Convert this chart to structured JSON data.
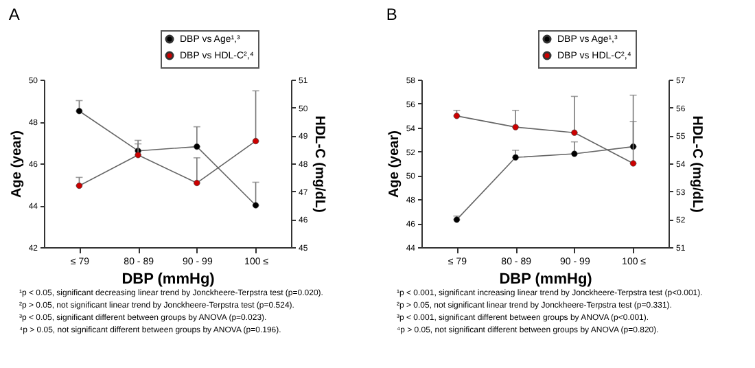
{
  "chart_data": [
    {
      "type": "line",
      "title": "A",
      "xlabel": "DBP (mmHg)",
      "ylabel": "Age (year)",
      "y2label": "HDL-C (mg/dL)",
      "categories": [
        "≤ 79",
        "80 - 89",
        "90 - 99",
        "100 ≤"
      ],
      "series": [
        {
          "name": "DBP vs Age¹,³",
          "color": "#000000",
          "values": [
            48.5,
            46.6,
            46.8,
            44.0
          ],
          "errors": [
            [
              48.5,
              49.0
            ],
            [
              46.6,
              47.1
            ],
            [
              46.8,
              47.75
            ],
            [
              44.0,
              45.1
            ]
          ]
        },
        {
          "name": "DBP vs HDL-C²,⁴",
          "color": "#cc0000",
          "axis": "y2",
          "values": [
            47.2,
            48.3,
            47.3,
            48.8
          ],
          "errors": [
            [
              47.2,
              47.5
            ],
            [
              48.3,
              48.7
            ],
            [
              47.3,
              48.2
            ],
            [
              48.8,
              50.6
            ]
          ]
        }
      ],
      "ylim": [
        42,
        50
      ],
      "yticks": [
        42,
        44,
        46,
        48,
        50
      ],
      "y2lim": [
        45,
        51
      ],
      "y2ticks": [
        45,
        46,
        47,
        48,
        49,
        50,
        51
      ],
      "marker": "circle",
      "legend": "top right",
      "annotations": [
        "¹p < 0.05, significant decreasing linear trend by Jonckheere-Terpstra test (p=0.020).",
        "²p > 0.05, not significant linear trend by Jonckheere-Terpstra test (p=0.524).",
        "³p < 0.05, significant different between groups by ANOVA (p=0.023).",
        "⁴p > 0.05, not significant different between groups by ANOVA (p=0.196)."
      ]
    },
    {
      "type": "line",
      "title": "B",
      "xlabel": "DBP (mmHg)",
      "ylabel": "Age (year)",
      "y2label": "HDL-C (mg/dL)",
      "categories": [
        "≤ 79",
        "80 - 89",
        "90 - 99",
        "100 ≤"
      ],
      "series": [
        {
          "name": "DBP vs Age¹,³",
          "color": "#000000",
          "values": [
            46.3,
            51.5,
            51.8,
            52.4
          ],
          "errors": [
            [
              46.3,
              46.6
            ],
            [
              51.5,
              52.1
            ],
            [
              51.8,
              52.8
            ],
            [
              52.4,
              56.7
            ]
          ]
        },
        {
          "name": "DBP vs HDL-C²,⁴",
          "color": "#cc0000",
          "axis": "y2",
          "values": [
            55.7,
            55.3,
            55.1,
            54.0
          ],
          "errors": [
            [
              55.7,
              55.9
            ],
            [
              55.3,
              55.9
            ],
            [
              55.1,
              56.4
            ],
            [
              54.0,
              55.5
            ]
          ]
        }
      ],
      "ylim": [
        44,
        58
      ],
      "yticks": [
        44,
        46,
        48,
        50,
        52,
        54,
        56,
        58
      ],
      "y2lim": [
        51,
        57
      ],
      "y2ticks": [
        51,
        52,
        53,
        54,
        55,
        56,
        57
      ],
      "marker": "circle",
      "legend": "top right",
      "annotations": [
        "¹p < 0.001, significant increasing linear trend by Jonckheere-Terpstra test (p<0.001).",
        "²p > 0.05, not significant linear trend by Jonckheere-Terpstra test (p=0.331).",
        "³p < 0.001, significant different between groups by ANOVA (p<0.001).",
        "⁴p > 0.05, not significant different between groups by ANOVA (p=0.820)."
      ]
    }
  ]
}
